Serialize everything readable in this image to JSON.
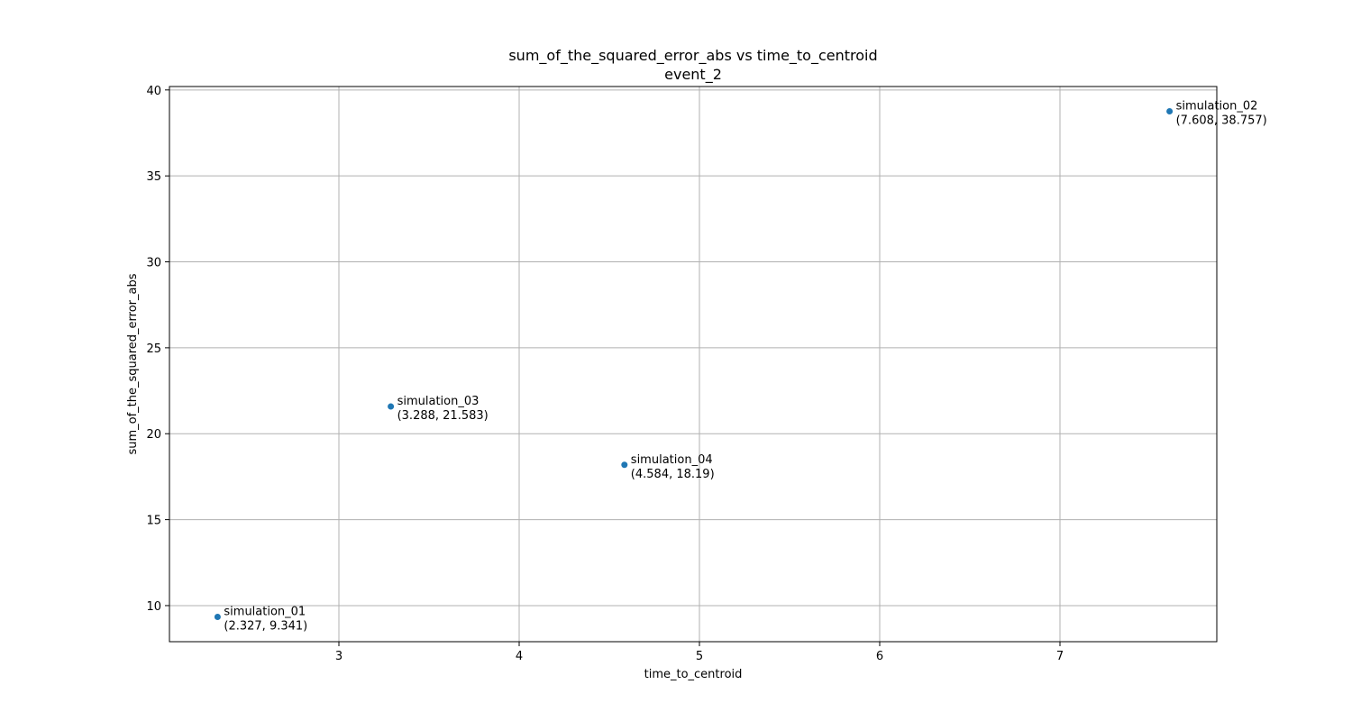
{
  "chart_data": {
    "type": "scatter",
    "title": "sum_of_the_squared_error_abs vs time_to_centroid",
    "subtitle": "event_2",
    "xlabel": "time_to_centroid",
    "ylabel": "sum_of_the_squared_error_abs",
    "xlim": [
      2.06,
      7.87
    ],
    "ylim": [
      7.9,
      40.2
    ],
    "xticks": [
      3,
      4,
      5,
      6,
      7
    ],
    "yticks": [
      10,
      15,
      20,
      25,
      30,
      35,
      40
    ],
    "grid": true,
    "point_color": "#1f77b4",
    "points": [
      {
        "label": "simulation_01",
        "coord": "(2.327, 9.341)",
        "x": 2.327,
        "y": 9.341
      },
      {
        "label": "simulation_02",
        "coord": "(7.608, 38.757)",
        "x": 7.608,
        "y": 38.757
      },
      {
        "label": "simulation_03",
        "coord": "(3.288, 21.583)",
        "x": 3.288,
        "y": 21.583
      },
      {
        "label": "simulation_04",
        "coord": "(4.584, 18.19)",
        "x": 4.584,
        "y": 18.19
      }
    ]
  }
}
